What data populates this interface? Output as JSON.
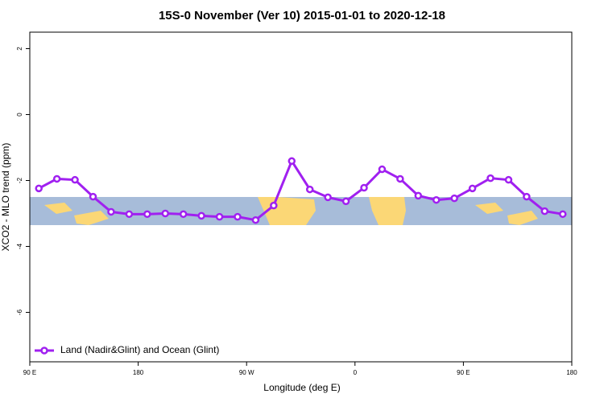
{
  "chart_data": {
    "type": "line",
    "title": "15S-0 November (Ver 10)   2015-01-01 to 2020-12-18",
    "x_label": "Longitude (deg E)",
    "y_label": "XCO2 - MLO trend (ppm)",
    "x": [
      97.5,
      112.5,
      127.5,
      142.5,
      157.5,
      172.5,
      187.5,
      202.5,
      217.5,
      232.5,
      247.5,
      262.5,
      277.5,
      292.5,
      307.5,
      322.5,
      337.5,
      352.5,
      367.5,
      382.5,
      397.5,
      412.5,
      427.5,
      442.5,
      457.5,
      472.5,
      487.5,
      502.5,
      517.5,
      532.5
    ],
    "series": [
      {
        "name": "Land (Nadir&Glint) and Ocean (Glint)",
        "color": "#a020f0",
        "values": [
          -2.24,
          -1.95,
          -1.98,
          -2.49,
          -2.95,
          -3.02,
          -3.02,
          -3.0,
          -3.02,
          -3.07,
          -3.1,
          -3.1,
          -3.2,
          -2.76,
          -1.41,
          -2.27,
          -2.51,
          -2.63,
          -2.22,
          -1.66,
          -1.95,
          -2.46,
          -2.59,
          -2.54,
          -2.24,
          -1.93,
          -1.98,
          -2.49,
          -2.93,
          -3.02
        ]
      }
    ],
    "xlim": [
      90,
      540
    ],
    "xticks": [
      {
        "value": 90,
        "label": "90 E"
      },
      180,
      {
        "value": 270,
        "label": "90 W"
      },
      {
        "value": 360,
        "label": "0"
      },
      {
        "value": 450,
        "label": "90 E"
      },
      {
        "value": 540,
        "label": "180"
      }
    ],
    "ylim": [
      -7.5,
      2.5
    ],
    "yticks": [
      2,
      0,
      -2,
      -4,
      -6
    ],
    "legend": "bottom-left"
  }
}
